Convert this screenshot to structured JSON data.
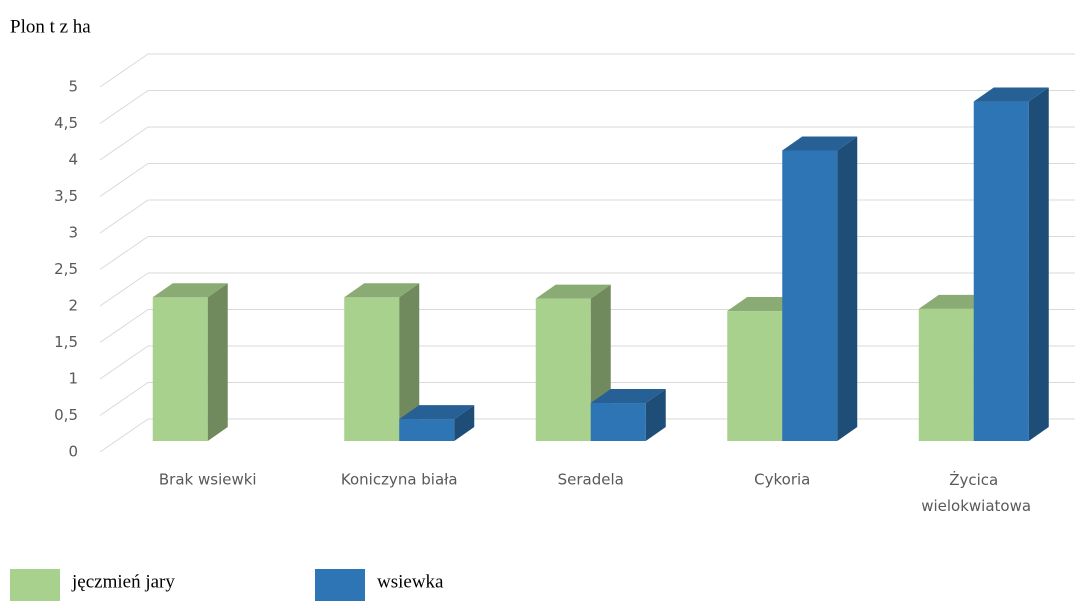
{
  "chart_data": {
    "type": "bar3d",
    "y_axis_label": "Plon t z ha",
    "categories": [
      "Brak wsiewki",
      "Koniczyna biała",
      "Seradela",
      "Cykoria",
      "Życica wielokwiatowa"
    ],
    "series": [
      {
        "name": "jęczmień jary",
        "color": "#a9d18e",
        "values": [
          1.97,
          1.97,
          1.95,
          1.78,
          1.81
        ]
      },
      {
        "name": "wsiewka",
        "color": "#2e75b6",
        "values": [
          null,
          0.3,
          0.52,
          3.98,
          4.65
        ]
      }
    ],
    "ylim": [
      0,
      5
    ],
    "yticks": [
      0,
      {
        "value": 0.5,
        "label": "0,5"
      },
      1,
      {
        "value": 1.5,
        "label": "1,5"
      },
      2,
      {
        "value": 2.5,
        "label": "2,5"
      },
      3,
      {
        "value": 3.5,
        "label": "3,5"
      },
      4,
      {
        "value": 4.5,
        "label": "4,5"
      },
      5
    ],
    "grid": true,
    "legend": "bottom"
  }
}
